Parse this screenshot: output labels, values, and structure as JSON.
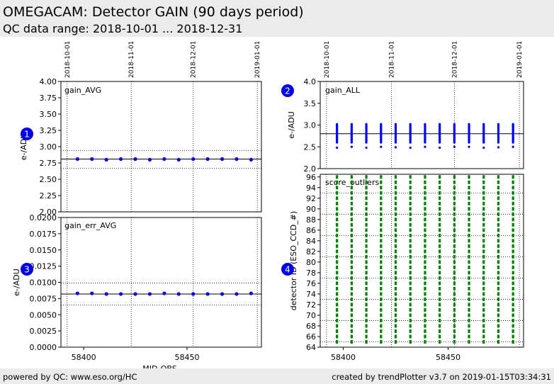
{
  "header": {
    "title": "OMEGACAM: Detector GAIN (90 days period)",
    "subtitle": "QC data range: 2018-10-01 ... 2018-12-31"
  },
  "footer": {
    "left": "powered by QC: www.eso.org/HC",
    "right": "created by trendPlotter v3.7 on 2019-01-15T03:34:31"
  },
  "colors": {
    "points_blue": "#0000ff",
    "points_green": "#008000",
    "marker_blue": "#0000ee",
    "header_bg": "#ebebeb"
  },
  "date_marks": [
    {
      "label": "2018-10-01",
      "mjd": 58392
    },
    {
      "label": "2018-11-01",
      "mjd": 58423
    },
    {
      "label": "2018-12-01",
      "mjd": 58453
    },
    {
      "label": "2019-01-01",
      "mjd": 58484
    }
  ],
  "x_axis": {
    "label": "MJD-OBS",
    "xlim": [
      58389,
      58486
    ],
    "ticks": [
      58400,
      58450
    ]
  },
  "chart_data": [
    {
      "id": "gain_avg",
      "type": "scatter",
      "title": "gain_AVG",
      "marker": "1",
      "ylabel": "e-/ADU",
      "ylim": [
        2.0,
        4.0
      ],
      "yticks": [
        "2.00",
        "2.25",
        "2.50",
        "2.75",
        "3.00",
        "3.25",
        "3.50",
        "3.75",
        "4.00"
      ],
      "ref_line": 2.81,
      "dotted_lines": [
        2.67,
        2.94
      ],
      "x": [
        58397,
        58404,
        58411,
        58418,
        58425,
        58432,
        58439,
        58446,
        58453,
        58460,
        58467,
        58474,
        58481
      ],
      "y": [
        2.81,
        2.81,
        2.8,
        2.81,
        2.81,
        2.8,
        2.81,
        2.8,
        2.81,
        2.81,
        2.81,
        2.81,
        2.8
      ]
    },
    {
      "id": "gain_err_avg",
      "type": "scatter",
      "title": "gain_err_AVG",
      "marker": "3",
      "ylabel": "e-/ADU",
      "ylim": [
        0.0,
        0.02
      ],
      "yticks": [
        "0.0000",
        "0.0025",
        "0.0050",
        "0.0075",
        "0.0100",
        "0.0125",
        "0.0150",
        "0.0175",
        "0.0200"
      ],
      "ref_line": 0.0082,
      "dotted_lines": [
        0.0065,
        0.0099
      ],
      "x": [
        58397,
        58404,
        58411,
        58418,
        58425,
        58432,
        58439,
        58446,
        58453,
        58460,
        58467,
        58474,
        58481
      ],
      "y": [
        0.0083,
        0.0083,
        0.0082,
        0.0082,
        0.0082,
        0.0082,
        0.0083,
        0.0082,
        0.0082,
        0.0082,
        0.0082,
        0.0082,
        0.0083
      ]
    },
    {
      "id": "gain_all",
      "type": "scatter",
      "title": "gain_ALL",
      "marker": "2",
      "ylabel": "e-/ADU",
      "ylim": [
        2.0,
        4.0
      ],
      "yticks": [
        "2.0",
        "2.5",
        "3.0",
        "3.5",
        "4.0"
      ],
      "ref_line": 2.8,
      "x": [
        58397,
        58404,
        58411,
        58418,
        58425,
        58432,
        58439,
        58446,
        58453,
        58460,
        58467,
        58474,
        58481
      ],
      "band_min": 2.6,
      "band_max": 3.02,
      "outliers": [
        2.48,
        2.5,
        2.48,
        2.5,
        2.49,
        2.48,
        2.5,
        2.48,
        2.5,
        2.5,
        2.48,
        2.49,
        2.5
      ]
    },
    {
      "id": "score_outliers",
      "type": "scatter",
      "title": "score_outliers",
      "marker": "4",
      "ylabel": "detector ID (ESO_CCD_#)",
      "ylim": [
        64,
        96.5
      ],
      "yticks": [
        "64",
        "66",
        "68",
        "70",
        "72",
        "74",
        "76",
        "78",
        "80",
        "82",
        "84",
        "86",
        "88",
        "90",
        "92",
        "94",
        "96"
      ],
      "dotted_lines": [
        65,
        69,
        73,
        77,
        81,
        85,
        89,
        93
      ],
      "x": [
        58397,
        58404,
        58411,
        58418,
        58425,
        58432,
        58439,
        58446,
        58453,
        58460,
        58467,
        58474,
        58481
      ],
      "detector_min": 65,
      "detector_max": 96
    }
  ]
}
